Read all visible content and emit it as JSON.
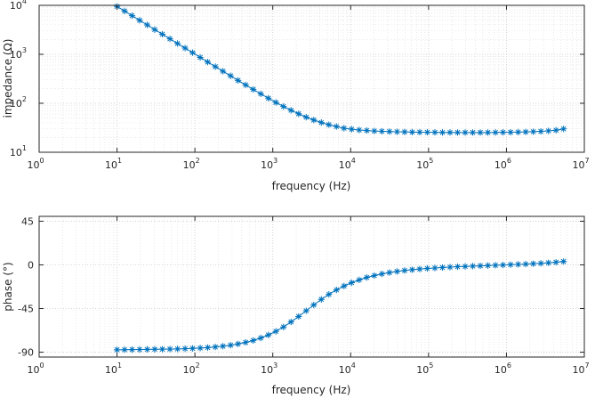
{
  "chart_data": [
    {
      "type": "line",
      "id": "impedance",
      "xscale": "log",
      "yscale": "log",
      "xlabel": "frequency (Hz)",
      "ylabel": "impedance (Ω)",
      "xlim": [
        1,
        10000000
      ],
      "ylim": [
        10,
        10000
      ],
      "xticks": [
        1,
        10,
        100,
        1000,
        10000,
        100000,
        1000000,
        10000000
      ],
      "xtick_labels": [
        {
          "base": "10",
          "exp": "0"
        },
        {
          "base": "10",
          "exp": "1"
        },
        {
          "base": "10",
          "exp": "2"
        },
        {
          "base": "10",
          "exp": "3"
        },
        {
          "base": "10",
          "exp": "4"
        },
        {
          "base": "10",
          "exp": "5"
        },
        {
          "base": "10",
          "exp": "6"
        },
        {
          "base": "10",
          "exp": "7"
        }
      ],
      "yticks": [
        10,
        100,
        1000,
        10000
      ],
      "ytick_labels": [
        {
          "base": "10",
          "exp": "1"
        },
        {
          "base": "10",
          "exp": "2"
        },
        {
          "base": "10",
          "exp": "3"
        },
        {
          "base": "10",
          "exp": "4"
        }
      ],
      "grid": true,
      "marker": "asterisk",
      "color": "#0072bd",
      "series": [
        {
          "name": "impedance",
          "x": [
            10,
            12.5,
            15.6,
            19.5,
            24.4,
            30.5,
            38.2,
            47.8,
            59.8,
            74.8,
            93.5,
            117,
            146,
            183,
            229,
            287,
            358,
            448,
            561,
            701,
            877,
            1097,
            1372,
            1716,
            2146,
            2685,
            3358,
            4200,
            5253,
            6571,
            8219,
            10281,
            12859,
            16084,
            20118,
            25164,
            31476,
            39372,
            49248,
            61600,
            77051,
            96377,
            120550,
            150786,
            188606,
            235911,
            295081,
            369095,
            461673,
            577471,
            722316,
            903494,
            1130120,
            1413588,
            1768161,
            2211670,
            2766425,
            3460330,
            4328288,
            5413936
          ],
          "y": [
            9500,
            7650,
            6150,
            4950,
            3980,
            3200,
            2570,
            2070,
            1660,
            1340,
            1080,
            865,
            695,
            560,
            452,
            364,
            293,
            237,
            192,
            156,
            127,
            104,
            86,
            72,
            61,
            52,
            45.5,
            40.5,
            36.5,
            33.5,
            31,
            29.5,
            28.5,
            27.8,
            27.2,
            26.8,
            26.5,
            26.2,
            26,
            25.8,
            25.7,
            25.6,
            25.5,
            25.4,
            25.4,
            25.3,
            25.3,
            25.3,
            25.3,
            25.3,
            25.4,
            25.5,
            25.6,
            25.8,
            26,
            26.3,
            26.7,
            27.3,
            28.2,
            30
          ]
        }
      ]
    },
    {
      "type": "line",
      "id": "phase",
      "xscale": "log",
      "yscale": "linear",
      "xlabel": "frequency (Hz)",
      "ylabel": "phase (°)",
      "xlim": [
        1,
        10000000
      ],
      "ylim": [
        -95,
        50
      ],
      "xticks": [
        1,
        10,
        100,
        1000,
        10000,
        100000,
        1000000,
        10000000
      ],
      "xtick_labels": [
        {
          "base": "10",
          "exp": "0"
        },
        {
          "base": "10",
          "exp": "1"
        },
        {
          "base": "10",
          "exp": "2"
        },
        {
          "base": "10",
          "exp": "3"
        },
        {
          "base": "10",
          "exp": "4"
        },
        {
          "base": "10",
          "exp": "5"
        },
        {
          "base": "10",
          "exp": "6"
        },
        {
          "base": "10",
          "exp": "7"
        }
      ],
      "yticks": [
        -90,
        -45,
        0,
        45
      ],
      "ytick_labels": [
        "-90",
        "-45",
        "0",
        "45"
      ],
      "grid": true,
      "marker": "asterisk",
      "color": "#0072bd",
      "series": [
        {
          "name": "phase",
          "x": [
            10,
            12.5,
            15.6,
            19.5,
            24.4,
            30.5,
            38.2,
            47.8,
            59.8,
            74.8,
            93.5,
            117,
            146,
            183,
            229,
            287,
            358,
            448,
            561,
            701,
            877,
            1097,
            1372,
            1716,
            2146,
            2685,
            3358,
            4200,
            5253,
            6571,
            8219,
            10281,
            12859,
            16084,
            20118,
            25164,
            31476,
            39372,
            49248,
            61600,
            77051,
            96377,
            120550,
            150786,
            188606,
            235911,
            295081,
            369095,
            461673,
            577471,
            722316,
            903494,
            1130120,
            1413588,
            1768161,
            2211670,
            2766425,
            3460330,
            4328288,
            5413936
          ],
          "y": [
            -87.5,
            -87.4,
            -87.3,
            -87.2,
            -87.1,
            -87,
            -86.9,
            -86.8,
            -86.6,
            -86.4,
            -86.1,
            -85.7,
            -85.2,
            -84.6,
            -83.8,
            -82.8,
            -81.5,
            -79.9,
            -77.9,
            -75.4,
            -72.3,
            -68.5,
            -64,
            -58.8,
            -53.2,
            -47.3,
            -41.3,
            -35.6,
            -30.4,
            -25.8,
            -21.8,
            -18.4,
            -15.5,
            -13,
            -11,
            -9.3,
            -7.9,
            -6.8,
            -5.8,
            -5,
            -4.3,
            -3.7,
            -3.2,
            -2.7,
            -2.3,
            -1.9,
            -1.6,
            -1.3,
            -1,
            -0.7,
            -0.4,
            -0.1,
            0.2,
            0.5,
            0.8,
            1.2,
            1.6,
            2.1,
            2.7,
            3.5
          ]
        }
      ]
    }
  ]
}
